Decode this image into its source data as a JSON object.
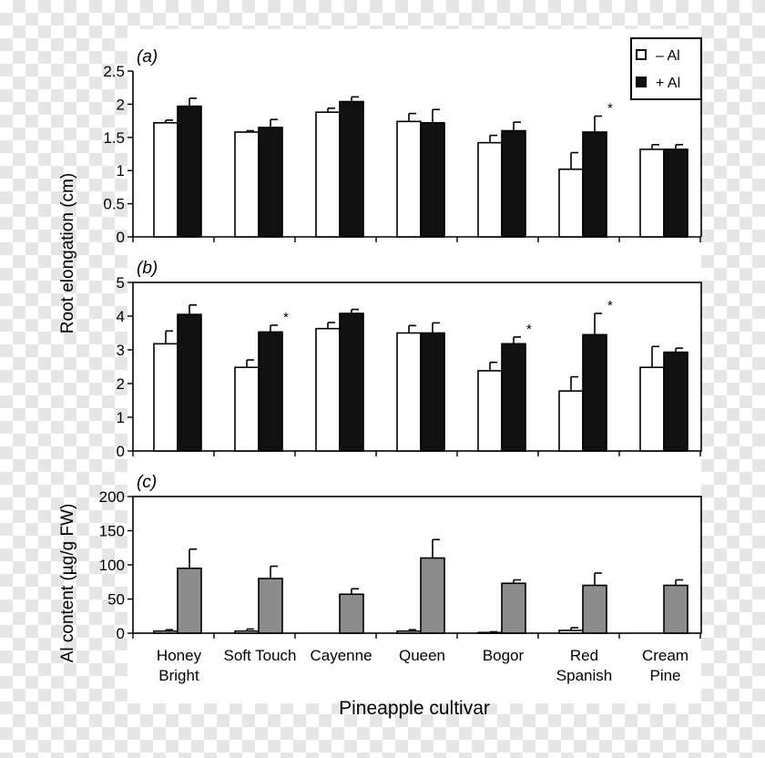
{
  "legend": {
    "minus": "–  Al",
    "plus": "+  Al"
  },
  "ylabel_root": "Root elongation (cm)",
  "xlabel": "Pineapple cultivar",
  "categories": [
    [
      "Honey",
      "Bright"
    ],
    [
      "Soft Touch"
    ],
    [
      "Cayenne"
    ],
    [
      "Queen"
    ],
    [
      "Bogor"
    ],
    [
      "Red",
      "Spanish"
    ],
    [
      "Cream",
      "Pine"
    ]
  ],
  "colors": {
    "minus_al": "#ffffff",
    "plus_al": "#111111",
    "al_content": "#8c8c8c"
  },
  "chart_data": [
    {
      "type": "bar",
      "panel_label": "(a)",
      "ylim": [
        0,
        2.5
      ],
      "yticks": [
        "0",
        "0.5",
        "1",
        "1.5",
        "2",
        "2.5"
      ],
      "ytick_values": [
        0,
        0.5,
        1,
        1.5,
        2,
        2.5
      ],
      "series": [
        {
          "name": "– Al",
          "values": [
            1.72,
            1.58,
            1.88,
            1.74,
            1.42,
            1.02,
            1.32
          ],
          "errors": [
            0.04,
            0.02,
            0.06,
            0.12,
            0.11,
            0.25,
            0.07
          ]
        },
        {
          "name": "+ Al",
          "values": [
            1.97,
            1.65,
            2.04,
            1.72,
            1.6,
            1.58,
            1.32
          ],
          "errors": [
            0.12,
            0.12,
            0.07,
            0.2,
            0.13,
            0.24,
            0.07
          ]
        }
      ],
      "significant": [
        false,
        false,
        false,
        false,
        false,
        true,
        false
      ],
      "sig_marker": "*"
    },
    {
      "type": "bar",
      "panel_label": "(b)",
      "ylim": [
        0,
        5
      ],
      "yticks": [
        "0",
        "1",
        "2",
        "3",
        "4",
        "5"
      ],
      "ytick_values": [
        0,
        1,
        2,
        3,
        4,
        5
      ],
      "series": [
        {
          "name": "– Al",
          "values": [
            3.18,
            2.48,
            3.63,
            3.5,
            2.38,
            1.78,
            2.48
          ],
          "errors": [
            0.38,
            0.22,
            0.18,
            0.22,
            0.25,
            0.42,
            0.62
          ]
        },
        {
          "name": "+ Al",
          "values": [
            4.05,
            3.53,
            4.08,
            3.5,
            3.18,
            3.45,
            2.93
          ],
          "errors": [
            0.28,
            0.2,
            0.12,
            0.3,
            0.2,
            0.63,
            0.12
          ]
        }
      ],
      "significant": [
        false,
        true,
        false,
        false,
        true,
        true,
        false
      ],
      "sig_marker": "*"
    },
    {
      "type": "bar",
      "panel_label": "(c)",
      "ylabel": "Al content (µg/g FW)",
      "ylim": [
        0,
        200
      ],
      "yticks": [
        "0",
        "50",
        "100",
        "150",
        "200"
      ],
      "ytick_values": [
        0,
        50,
        100,
        150,
        200
      ],
      "series": [
        {
          "name": "– Al",
          "values": [
            3,
            3,
            0,
            3,
            1,
            4,
            0
          ],
          "errors": [
            2,
            3,
            0,
            2,
            1,
            4,
            0
          ]
        },
        {
          "name": "+ Al",
          "values": [
            95,
            80,
            57,
            110,
            73,
            70,
            70
          ],
          "errors": [
            28,
            18,
            8,
            27,
            5,
            18,
            8
          ]
        }
      ],
      "significant": [
        false,
        false,
        false,
        false,
        false,
        false,
        false
      ],
      "sig_marker": "*"
    }
  ]
}
